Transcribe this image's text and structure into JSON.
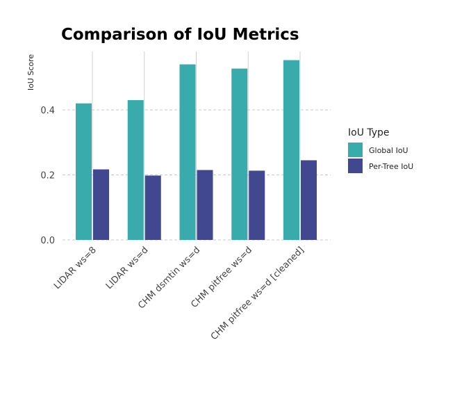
{
  "chart_data": {
    "type": "bar",
    "title": "Comparison of IoU Metrics",
    "xlabel": "",
    "ylabel": "IoU Score",
    "categories": [
      "LIDAR ws=8",
      "LIDAR ws=d",
      "CHM dsmtin ws=d",
      "CHM pitfree ws=d",
      "CHM pitfree ws=d [cleaned]"
    ],
    "series": [
      {
        "name": "Global IoU",
        "color": "#3aabac",
        "values": [
          0.42,
          0.43,
          0.54,
          0.527,
          0.553
        ]
      },
      {
        "name": "Per-Tree IoU",
        "color": "#41488f",
        "values": [
          0.217,
          0.198,
          0.215,
          0.213,
          0.245
        ]
      }
    ],
    "yticks": [
      0.0,
      0.2,
      0.4
    ],
    "ytick_labels": [
      "0.0",
      "0.2",
      "0.4"
    ],
    "ylim": [
      0,
      0.58
    ],
    "grid": true,
    "legend": {
      "title": "IoU Type",
      "position": "right"
    }
  }
}
